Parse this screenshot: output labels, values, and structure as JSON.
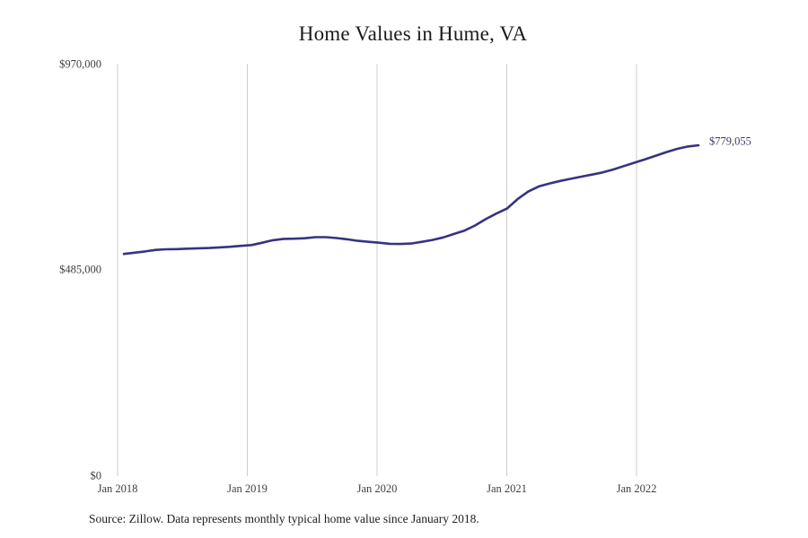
{
  "title": "Home Values in Hume, VA",
  "source_note": "Source: Zillow. Data represents monthly typical home value since January 2018.",
  "annotation": {
    "label": "$779,055",
    "value": 779055
  },
  "colors": {
    "line": "#363381",
    "grid": "#cccccc",
    "tick_text": "#3f3f3f",
    "title_text": "#1a1a1a",
    "annotation_text": "#3d3d66",
    "background": "#ffffff"
  },
  "chart_data": {
    "type": "line",
    "title": "Home Values in Hume, VA",
    "xlabel": "",
    "ylabel": "",
    "ylim": [
      0,
      970000
    ],
    "grid": "vertical-only",
    "legend": "none",
    "y_ticks": [
      {
        "label": "$0",
        "value": 0
      },
      {
        "label": "$485,000",
        "value": 485000
      },
      {
        "label": "$970,000",
        "value": 970000
      }
    ],
    "x_ticks": [
      "Jan 2018",
      "Jan 2019",
      "Jan 2020",
      "Jan 2021",
      "Jan 2022"
    ],
    "last_point_label": "$779,055",
    "x": [
      "Jan 2018",
      "Feb 2018",
      "Mar 2018",
      "Apr 2018",
      "May 2018",
      "Jun 2018",
      "Jul 2018",
      "Aug 2018",
      "Sep 2018",
      "Oct 2018",
      "Nov 2018",
      "Dec 2018",
      "Jan 2019",
      "Feb 2019",
      "Mar 2019",
      "Apr 2019",
      "May 2019",
      "Jun 2019",
      "Jul 2019",
      "Aug 2019",
      "Sep 2019",
      "Oct 2019",
      "Nov 2019",
      "Dec 2019",
      "Jan 2020",
      "Feb 2020",
      "Mar 2020",
      "Apr 2020",
      "May 2020",
      "Jun 2020",
      "Jul 2020",
      "Aug 2020",
      "Sep 2020",
      "Oct 2020",
      "Nov 2020",
      "Dec 2020",
      "Jan 2021",
      "Feb 2021",
      "Mar 2021",
      "Apr 2021",
      "May 2021",
      "Jun 2021",
      "Jul 2021",
      "Aug 2021",
      "Sep 2021",
      "Oct 2021",
      "Nov 2021",
      "Dec 2021",
      "Jan 2022",
      "Feb 2022",
      "Mar 2022",
      "Apr 2022",
      "May 2022",
      "Jun 2022",
      "Jul 2022"
    ],
    "values": [
      523000,
      526000,
      529000,
      532500,
      534000,
      534500,
      535500,
      536500,
      537000,
      538500,
      540000,
      542000,
      544000,
      549500,
      555500,
      558500,
      559000,
      560000,
      562500,
      562500,
      560500,
      557500,
      554000,
      551500,
      549500,
      547000,
      546500,
      547500,
      551500,
      556000,
      562000,
      570000,
      578000,
      590000,
      605000,
      618000,
      630000,
      652000,
      670000,
      682000,
      689000,
      695000,
      700000,
      705000,
      710000,
      715000,
      722000,
      730000,
      738000,
      746000,
      754500,
      763000,
      770500,
      776000,
      779055
    ]
  }
}
